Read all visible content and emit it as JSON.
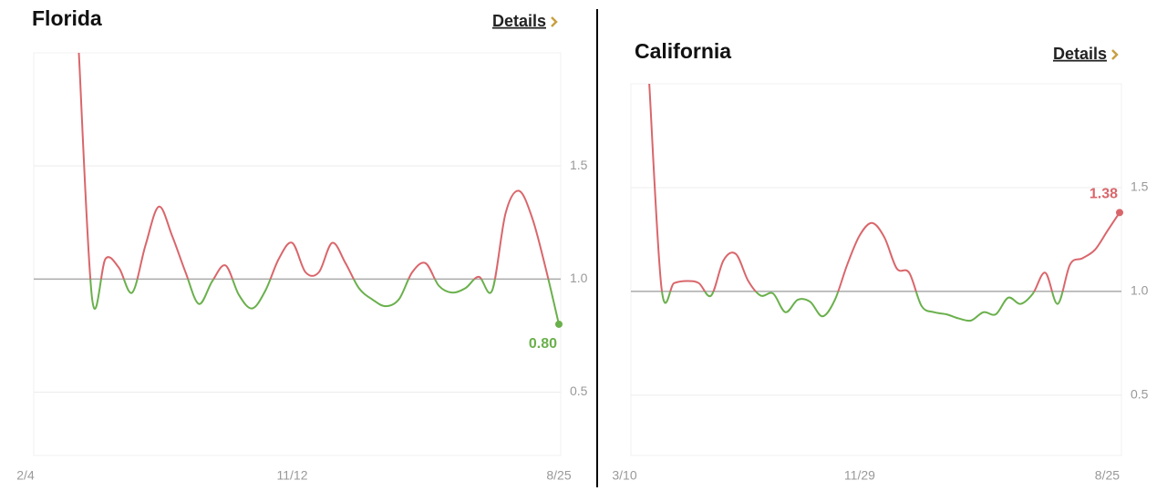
{
  "chart_data": [
    {
      "type": "line",
      "title": "Florida",
      "link": "Details",
      "categories": [
        "2/4",
        null,
        null,
        null,
        null,
        null,
        null,
        null,
        null,
        null,
        null,
        null,
        null,
        null,
        null,
        null,
        null,
        null,
        null,
        null,
        "11/12",
        null,
        null,
        null,
        null,
        null,
        null,
        null,
        null,
        null,
        null,
        null,
        null,
        null,
        null,
        null,
        null,
        null,
        null,
        null,
        "8/25"
      ],
      "values": [
        null,
        null,
        null,
        null,
        2.0,
        0.91,
        1.09,
        1.05,
        0.94,
        1.15,
        1.32,
        1.19,
        1.03,
        0.89,
        0.99,
        1.06,
        0.93,
        0.87,
        0.95,
        1.09,
        1.16,
        1.03,
        1.03,
        1.16,
        1.07,
        0.96,
        0.91,
        0.88,
        0.91,
        1.03,
        1.07,
        0.97,
        0.94,
        0.96,
        1.01,
        0.95,
        1.29,
        1.39,
        1.27,
        1.05,
        0.8
      ],
      "value_labels": [
        null,
        null,
        null,
        null,
        null,
        null,
        null,
        null,
        null,
        null,
        null,
        null,
        null,
        null,
        null,
        null,
        null,
        null,
        null,
        null,
        null,
        null,
        null,
        null,
        null,
        null,
        null,
        null,
        null,
        null,
        null,
        null,
        null,
        null,
        null,
        null,
        null,
        null,
        null,
        null,
        "0.80"
      ],
      "above_color": "#d9666b",
      "below_color": "#6ab04c",
      "reference_line": 1.0,
      "ylim": [
        0.22,
        2.0
      ],
      "yticks": [
        0.5,
        {
          "value": 1.0,
          "label": "1.0"
        },
        1.5
      ],
      "grid": true
    },
    {
      "type": "line",
      "title": "California",
      "link": "Details",
      "categories": [
        "3/10",
        null,
        null,
        null,
        null,
        null,
        null,
        null,
        null,
        null,
        null,
        null,
        null,
        null,
        null,
        null,
        null,
        null,
        null,
        "11/29",
        null,
        null,
        null,
        null,
        null,
        null,
        null,
        null,
        null,
        null,
        null,
        null,
        null,
        null,
        null,
        null,
        null,
        null,
        null,
        "8/25",
        null
      ],
      "values": [
        null,
        null,
        2.0,
        1.01,
        1.04,
        1.05,
        1.04,
        0.98,
        1.15,
        1.18,
        1.05,
        0.98,
        0.99,
        0.9,
        0.96,
        0.95,
        0.88,
        0.96,
        1.13,
        1.27,
        1.33,
        1.26,
        1.11,
        1.09,
        0.93,
        0.9,
        0.89,
        0.87,
        0.86,
        0.9,
        0.89,
        0.97,
        0.94,
        0.99,
        1.09,
        0.94,
        1.13,
        1.16,
        1.2,
        1.29,
        1.38
      ],
      "label_last": true,
      "above_color": "#d9666b",
      "below_color": "#6ab04c",
      "reference_line": 1.0,
      "ylim": [
        0.21,
        2.0
      ],
      "yticks": [
        0.5,
        {
          "value": 1.0,
          "label": "1.0"
        },
        1.5
      ],
      "grid": true
    }
  ]
}
